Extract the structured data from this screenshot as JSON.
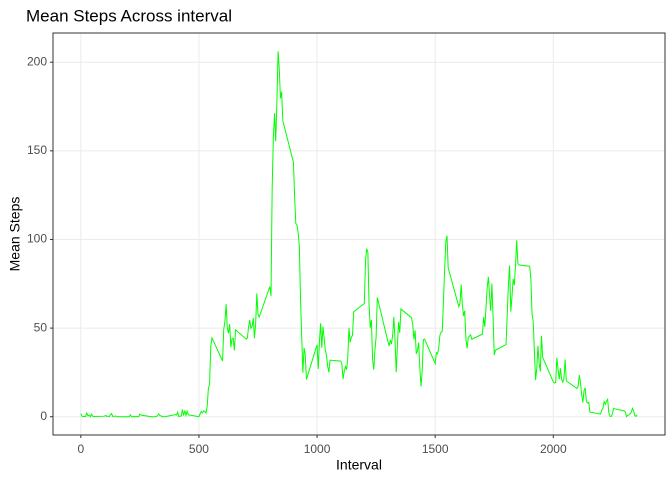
{
  "chart_data": {
    "type": "line",
    "title": "Mean Steps Across interval",
    "x_label": "Interval",
    "y_label": "Mean Steps",
    "x": [
      0,
      5,
      10,
      15,
      20,
      25,
      30,
      35,
      40,
      45,
      50,
      55,
      100,
      105,
      110,
      115,
      120,
      125,
      130,
      135,
      140,
      145,
      150,
      155,
      200,
      205,
      210,
      215,
      220,
      225,
      230,
      235,
      240,
      245,
      250,
      255,
      300,
      305,
      310,
      315,
      320,
      325,
      330,
      335,
      340,
      345,
      350,
      355,
      400,
      405,
      410,
      415,
      420,
      425,
      430,
      435,
      440,
      445,
      450,
      455,
      500,
      505,
      510,
      515,
      520,
      525,
      530,
      535,
      540,
      545,
      550,
      555,
      600,
      605,
      610,
      615,
      620,
      625,
      630,
      635,
      640,
      645,
      650,
      655,
      700,
      705,
      710,
      715,
      720,
      725,
      730,
      735,
      740,
      745,
      750,
      755,
      800,
      805,
      810,
      815,
      820,
      825,
      830,
      835,
      840,
      845,
      850,
      855,
      900,
      905,
      910,
      915,
      920,
      925,
      930,
      935,
      940,
      945,
      950,
      955,
      1000,
      1005,
      1010,
      1015,
      1020,
      1025,
      1030,
      1035,
      1040,
      1045,
      1050,
      1055,
      1100,
      1105,
      1110,
      1115,
      1120,
      1125,
      1130,
      1135,
      1140,
      1145,
      1150,
      1155,
      1200,
      1205,
      1210,
      1215,
      1220,
      1225,
      1230,
      1235,
      1240,
      1245,
      1250,
      1255,
      1300,
      1305,
      1310,
      1315,
      1320,
      1325,
      1330,
      1335,
      1340,
      1345,
      1350,
      1355,
      1400,
      1405,
      1410,
      1415,
      1420,
      1425,
      1430,
      1435,
      1440,
      1445,
      1450,
      1455,
      1500,
      1505,
      1510,
      1515,
      1520,
      1525,
      1530,
      1535,
      1540,
      1545,
      1550,
      1555,
      1600,
      1605,
      1610,
      1615,
      1620,
      1625,
      1630,
      1635,
      1640,
      1645,
      1650,
      1655,
      1700,
      1705,
      1710,
      1715,
      1720,
      1725,
      1730,
      1735,
      1740,
      1745,
      1750,
      1755,
      1800,
      1805,
      1810,
      1815,
      1820,
      1825,
      1830,
      1835,
      1840,
      1845,
      1850,
      1855,
      1900,
      1905,
      1910,
      1915,
      1920,
      1925,
      1930,
      1935,
      1940,
      1945,
      1950,
      1955,
      2000,
      2005,
      2010,
      2015,
      2020,
      2025,
      2030,
      2035,
      2040,
      2045,
      2050,
      2055,
      2100,
      2105,
      2110,
      2115,
      2120,
      2125,
      2130,
      2135,
      2140,
      2145,
      2150,
      2155,
      2200,
      2205,
      2210,
      2215,
      2220,
      2225,
      2230,
      2235,
      2240,
      2245,
      2250,
      2255,
      2300,
      2305,
      2310,
      2315,
      2320,
      2325,
      2330,
      2335,
      2340,
      2345,
      2350,
      2355
    ],
    "series": [
      {
        "color": "#00ff00",
        "values": [
          1.7,
          0.3,
          0.1,
          0.2,
          0.1,
          2.1,
          0.5,
          0.9,
          0,
          1.5,
          0.3,
          0.1,
          0.3,
          0.7,
          0.2,
          0.3,
          0,
          1.1,
          1.8,
          0.2,
          0.2,
          0.4,
          0.3,
          0,
          0,
          0,
          1.1,
          0,
          0,
          0.1,
          0,
          0.2,
          0,
          0,
          1.5,
          0.9,
          0,
          0,
          0,
          0,
          0.2,
          0.6,
          1.6,
          0.6,
          0.5,
          0.1,
          0,
          0,
          1.2,
          0.9,
          2.6,
          0,
          0.3,
          0.4,
          4.1,
          0.7,
          3.5,
          0.8,
          3.1,
          1.1,
          0,
          1.6,
          3,
          2.2,
          3.3,
          3,
          2.1,
          6.1,
          16,
          18.3,
          39.5,
          44.5,
          31.5,
          49.3,
          53.8,
          63.5,
          50,
          47.1,
          52.2,
          39.3,
          44,
          44.2,
          37.4,
          49,
          43.8,
          44.4,
          50.5,
          54.5,
          49.9,
          51,
          55.7,
          44.3,
          52.3,
          69.5,
          57.8,
          56.2,
          73.4,
          68.2,
          129.4,
          157.5,
          171.2,
          155.4,
          177.3,
          206.2,
          195.9,
          179.6,
          183.4,
          167,
          143.5,
          124,
          109.1,
          108.1,
          103.7,
          96,
          66.2,
          45.2,
          24.8,
          38.8,
          35,
          21.1,
          40.6,
          27,
          42.4,
          52.7,
          38.9,
          50.8,
          44.3,
          37.4,
          34.7,
          28.3,
          25.1,
          31.9,
          31.4,
          29.7,
          21.3,
          25.5,
          28.4,
          26.5,
          33.4,
          50,
          42,
          44.6,
          46,
          59.2,
          63.9,
          87.7,
          94.8,
          92.8,
          63.4,
          50.2,
          54.5,
          32.4,
          26.5,
          37.7,
          45.1,
          67.3,
          42.3,
          39.9,
          43.3,
          41,
          46.2,
          56.4,
          42.8,
          25.1,
          40,
          53.5,
          47.3,
          60.8,
          55.8,
          52,
          43.6,
          48.7,
          35.5,
          37.5,
          41.8,
          27.5,
          17.1,
          26.1,
          43.6,
          43.8,
          30,
          36.1,
          35.5,
          38.8,
          46,
          47.8,
          48.1,
          65.3,
          82.9,
          98.7,
          102.1,
          84,
          62.1,
          64.1,
          74.5,
          63.2,
          56.9,
          59.8,
          43.9,
          38.6,
          44.7,
          45.5,
          46.2,
          43.7,
          46.6,
          56.3,
          50.7,
          61.2,
          72.7,
          78.9,
          68.9,
          59.7,
          75.1,
          56.5,
          34.8,
          37.5,
          40.7,
          58,
          74.7,
          85.3,
          59.3,
          67.8,
          77.7,
          74.2,
          85.3,
          99.5,
          86.6,
          85.6,
          84.9,
          77.8,
          58,
          53.4,
          36.3,
          20.7,
          27.4,
          40,
          30.2,
          25.5,
          45.7,
          33.5,
          19.6,
          19,
          19.3,
          33.3,
          26.8,
          21.2,
          27.3,
          21.3,
          19.5,
          21.3,
          32.3,
          20.2,
          15.9,
          17.2,
          23.5,
          19.2,
          12.5,
          8,
          14.7,
          16.3,
          8.7,
          7.8,
          8.1,
          2.6,
          1.5,
          3.7,
          4.8,
          8.5,
          7.1,
          8.7,
          9.8,
          2.2,
          0.3,
          0.1,
          1.6,
          4.6,
          3.3,
          2.8,
          0,
          0.8,
          1,
          1.6,
          2.6,
          4.7,
          3.3,
          0.6,
          0.2,
          1.1
        ]
      }
    ],
    "xlim": [
      -117.75,
      2472.75
    ],
    "xticks": [
      0,
      500,
      1000,
      1500,
      2000
    ],
    "ylim": [
      -10.31,
      216.48
    ],
    "yticks": [
      0,
      50,
      100,
      150,
      200
    ],
    "grid": true
  }
}
